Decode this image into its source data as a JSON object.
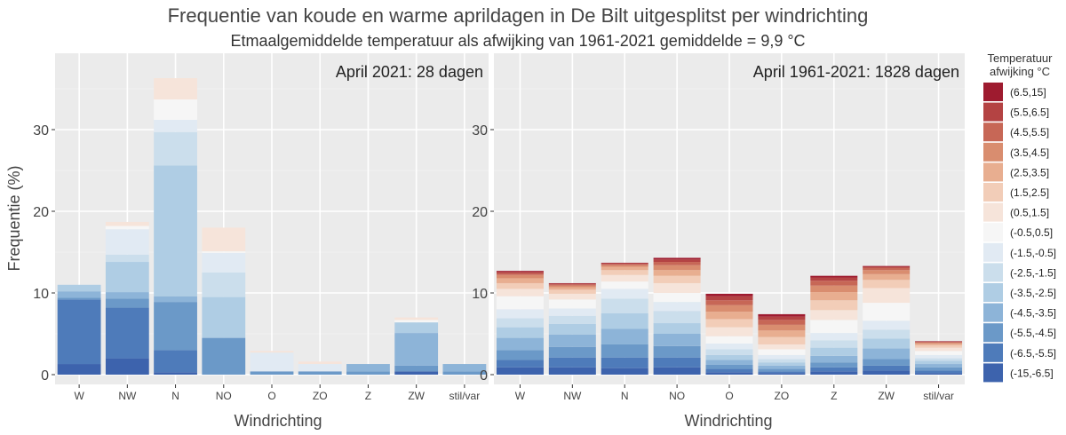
{
  "chart_data": {
    "type": "bar",
    "stacked": true,
    "title": "Frequentie van koude en warme aprildagen in De Bilt uitgesplitst per windrichting",
    "subtitle": "Etmaalgemiddelde temperatuur als afwijking van 1961-2021 gemiddelde = 9,9 °C",
    "ylabel": "Frequentie (%)",
    "xlabel": "Windrichting",
    "ylim": [
      0,
      38
    ],
    "yticks": [
      0,
      10,
      20,
      30
    ],
    "grid": true,
    "categories": [
      "W",
      "NW",
      "N",
      "NO",
      "O",
      "ZO",
      "Z",
      "ZW",
      "stil/var"
    ],
    "legend": {
      "title_line1": "Temperatuur",
      "title_line2": "afwijking °C",
      "placement": "right",
      "classes": [
        "(-15,-6.5]",
        "(-6.5,-5.5]",
        "(-5.5,-4.5]",
        "(-4.5,-3.5]",
        "(-3.5,-2.5]",
        "(-2.5,-1.5]",
        "(-1.5,-0.5]",
        "(-0.5,0.5]",
        "(0.5,1.5]",
        "(1.5,2.5]",
        "(2.5,3.5]",
        "(3.5,4.5]",
        "(4.5,5.5]",
        "(5.5,6.5]",
        "(6.5,15]"
      ],
      "colors": [
        "#3D63AD",
        "#4E7BBA",
        "#6B99C8",
        "#8DB4D8",
        "#AFCDE4",
        "#CBDEEC",
        "#E1EAF3",
        "#F6F6F6",
        "#F6E4DA",
        "#F2CDB8",
        "#E8AE90",
        "#D98D6F",
        "#C76756",
        "#B44343",
        "#9E1B2F"
      ]
    },
    "panels": [
      {
        "label": "April 2021: 28 dagen",
        "series_by_category": [
          [
            1.3,
            7.9,
            0.2,
            0.8,
            0.8,
            0,
            0,
            0,
            0,
            0,
            0,
            0,
            0,
            0,
            0
          ],
          [
            2.0,
            6.2,
            1.1,
            0.8,
            3.7,
            0.9,
            3.1,
            0.4,
            0.5,
            0,
            0,
            0,
            0,
            0,
            0
          ],
          [
            0.3,
            2.7,
            5.9,
            0.7,
            16.0,
            4.1,
            1.5,
            2.5,
            2.6,
            0,
            0,
            0,
            0,
            0,
            0
          ],
          [
            0,
            0,
            4.5,
            0,
            5.0,
            3.0,
            2.4,
            0.2,
            2.9,
            0,
            0,
            0,
            0,
            0,
            0
          ],
          [
            0,
            0,
            0.4,
            0,
            0,
            0,
            2.3,
            0,
            0.2,
            0,
            0,
            0,
            0,
            0,
            0
          ],
          [
            0,
            0,
            0.4,
            0,
            0,
            0,
            0.9,
            0,
            0.3,
            0,
            0,
            0,
            0,
            0,
            0
          ],
          [
            0,
            0,
            0.4,
            0.9,
            0,
            0,
            0,
            0,
            0,
            0,
            0,
            0,
            0,
            0,
            0
          ],
          [
            0.4,
            0,
            0.7,
            4.0,
            1.3,
            0,
            0,
            0.3,
            0.3,
            0,
            0,
            0,
            0,
            0,
            0
          ],
          [
            0,
            0,
            0.4,
            0.9,
            0,
            0,
            0,
            0,
            0,
            0,
            0,
            0,
            0,
            0,
            0
          ]
        ]
      },
      {
        "label": "April 1961-2021: 1828 dagen",
        "series_by_category": [
          [
            0.9,
            0.9,
            1.2,
            1.5,
            1.3,
            1.1,
            1.1,
            1.6,
            0.9,
            0.7,
            0.6,
            0.4,
            0.2,
            0.2,
            0.1
          ],
          [
            0.9,
            1.2,
            1.3,
            1.5,
            1.3,
            1.0,
            0.9,
            1.1,
            0.7,
            0.5,
            0.3,
            0.2,
            0.15,
            0.1,
            0.05
          ],
          [
            0.8,
            1.3,
            1.6,
            1.9,
            1.9,
            1.8,
            1.2,
            0.9,
            0.8,
            0.6,
            0.4,
            0.2,
            0.15,
            0.1,
            0.05
          ],
          [
            0.9,
            1.2,
            1.4,
            1.5,
            1.3,
            1.5,
            1.1,
            1.1,
            1.2,
            0.9,
            0.7,
            0.6,
            0.4,
            0.3,
            0.2
          ],
          [
            0.3,
            0.4,
            0.5,
            0.6,
            0.6,
            0.7,
            0.7,
            0.9,
            1.1,
            1.0,
            0.9,
            0.8,
            0.6,
            0.5,
            0.3
          ],
          [
            0.2,
            0.2,
            0.3,
            0.4,
            0.4,
            0.4,
            0.5,
            0.7,
            0.6,
            0.9,
            0.8,
            0.7,
            0.6,
            0.4,
            0.3
          ],
          [
            0.4,
            0.5,
            0.6,
            0.8,
            1.0,
            0.9,
            0.9,
            1.6,
            1.2,
            1.2,
            1.0,
            0.8,
            0.6,
            0.4,
            0.2
          ],
          [
            0.5,
            0.6,
            0.8,
            1.3,
            1.2,
            1.1,
            1.1,
            2.2,
            1.8,
            1.0,
            0.7,
            0.5,
            0.3,
            0.1,
            0.1
          ],
          [
            0.2,
            0.3,
            0.4,
            0.4,
            0.4,
            0.3,
            0.4,
            0.5,
            0.4,
            0.3,
            0.2,
            0.1,
            0.1,
            0.05,
            0.05
          ]
        ]
      }
    ]
  }
}
